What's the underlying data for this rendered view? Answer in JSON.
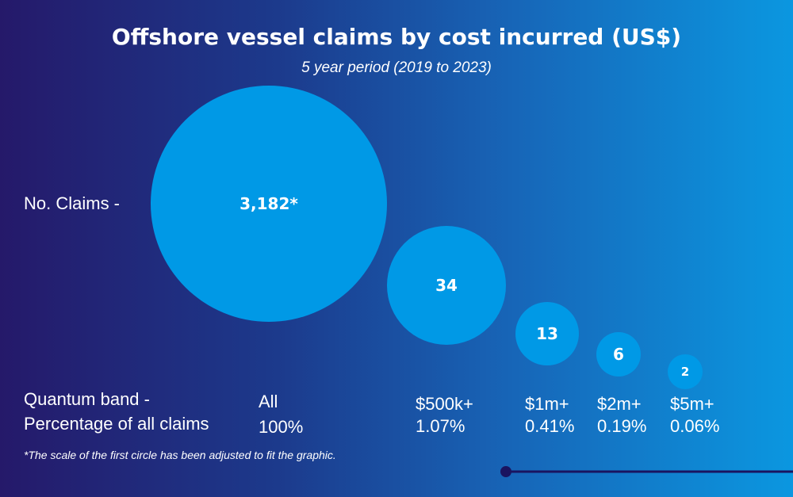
{
  "title": "Offshore vessel claims by cost incurred (US$)",
  "subtitle": "5 year period (2019 to 2023)",
  "labels": {
    "claims": "No. Claims -",
    "band": "Quantum band -",
    "percentage": "Percentage of all claims"
  },
  "footnote": "*The scale of the first circle has been adjusted to fit the graphic.",
  "colors": {
    "circle": "#0099e6",
    "accent_line": "#1a1460"
  },
  "chart_data": {
    "type": "bubble",
    "title": "Offshore vessel claims by cost incurred (US$)",
    "subtitle": "5 year period (2019 to 2023)",
    "series": [
      {
        "band": "All",
        "claims": 3182,
        "claims_label": "3,182*",
        "percentage": "100%"
      },
      {
        "band": "$500k+",
        "claims": 34,
        "claims_label": "34",
        "percentage": "1.07%"
      },
      {
        "band": "$1m+",
        "claims": 13,
        "claims_label": "13",
        "percentage": "0.41%"
      },
      {
        "band": "$2m+",
        "claims": 6,
        "claims_label": "6",
        "percentage": "0.19%"
      },
      {
        "band": "$5m+",
        "claims": 2,
        "claims_label": "2",
        "percentage": "0.06%"
      }
    ]
  }
}
